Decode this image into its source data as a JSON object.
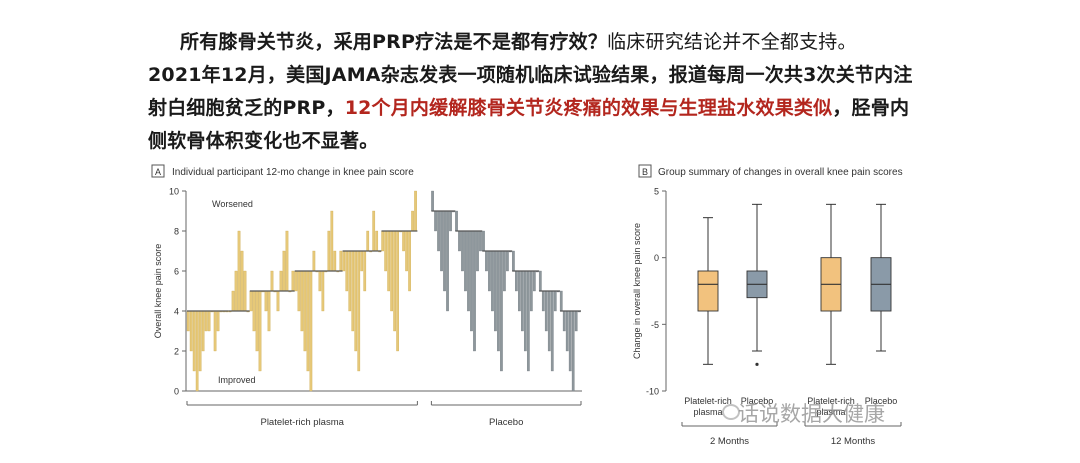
{
  "article": {
    "line1_bold": "所有膝骨关节炎，采用PRP疗法是不是都有疗效？",
    "line1_normal": "临床研究结论并不全都支持。",
    "line2": "2021年12月，美国JAMA杂志发表一项随机临床试验结果，报道每周一次共3次关节内注射白细胞贫乏的PRP，",
    "highlight": "12个月内缓解膝骨关节炎疼痛的效果与生理盐水效果类似",
    "line3": "，胫骨内侧软骨体积变化也不显著。"
  },
  "watermark": "话说数据大健康",
  "colors": {
    "prp": "#e6c878",
    "prp_stroke": "#c9a64a",
    "placebo": "#8e979c",
    "placebo_box": "#8a9aa8",
    "prp_box": "#f2c27e"
  },
  "chart_data": [
    {
      "type": "bar",
      "panel": "A",
      "title": "Individual participant 12-mo change in knee pain score",
      "ylabel": "Overall knee pain score",
      "ylim": [
        0,
        10
      ],
      "yticks": [
        0,
        2,
        4,
        6,
        8,
        10
      ],
      "annotations": [
        "Worsened",
        "Improved"
      ],
      "groups": [
        {
          "name": "Platelet-rich plasma",
          "steps": [
            {
              "base": 4,
              "ends": [
                3,
                2,
                1,
                0,
                1,
                2,
                3,
                3,
                4,
                2,
                3,
                4,
                4,
                4
              ]
            },
            {
              "base": 4,
              "ends": [
                4,
                5,
                6,
                8,
                7,
                6,
                4
              ]
            },
            {
              "base": 5,
              "ends": [
                4,
                3,
                2,
                1,
                5,
                4,
                3,
                6,
                5,
                4,
                6,
                7,
                8,
                5,
                6
              ]
            },
            {
              "base": 6,
              "ends": [
                5,
                4,
                3,
                2,
                1,
                0,
                7,
                6,
                5,
                4,
                6,
                8,
                9,
                7,
                6,
                7
              ]
            },
            {
              "base": 7,
              "ends": [
                6,
                5,
                4,
                3,
                2,
                1,
                6,
                5,
                8,
                7,
                9,
                8,
                7
              ]
            },
            {
              "base": 8,
              "ends": [
                7,
                6,
                5,
                4,
                3,
                2,
                8,
                7,
                6,
                5,
                9,
                10
              ]
            }
          ]
        },
        {
          "name": "Placebo",
          "steps": [
            {
              "base": 9,
              "ends": [
                10,
                8,
                7,
                6,
                5,
                4,
                8,
                9
              ]
            },
            {
              "base": 8,
              "ends": [
                9,
                7,
                6,
                5,
                4,
                3,
                2,
                6,
                7
              ]
            },
            {
              "base": 7,
              "ends": [
                8,
                6,
                5,
                4,
                3,
                2,
                1,
                5,
                6,
                7
              ]
            },
            {
              "base": 6,
              "ends": [
                7,
                5,
                4,
                3,
                2,
                1,
                4,
                5,
                6
              ]
            },
            {
              "base": 5,
              "ends": [
                6,
                4,
                3,
                2,
                1,
                4,
                5
              ]
            },
            {
              "base": 4,
              "ends": [
                5,
                3,
                2,
                1,
                0,
                3,
                4
              ]
            }
          ]
        }
      ]
    },
    {
      "type": "box",
      "panel": "B",
      "title": "Group summary of changes in overall knee pain scores",
      "ylabel": "Change in overall knee pain score",
      "ylim": [
        -10,
        5
      ],
      "yticks": [
        5,
        0,
        -5,
        -10
      ],
      "categories": [
        "Platelet-rich plasma",
        "Placebo",
        "Platelet-rich plasma",
        "Placebo"
      ],
      "timepoints": [
        "2 Months",
        "12 Months"
      ],
      "boxes": [
        {
          "group": "Platelet-rich plasma",
          "time": "2 Months",
          "min": -8,
          "q1": -4,
          "median": -2,
          "q3": -1,
          "max": 3,
          "outliers": []
        },
        {
          "group": "Placebo",
          "time": "2 Months",
          "min": -7,
          "q1": -3,
          "median": -2,
          "q3": -1,
          "max": 4,
          "outliers": [
            -8
          ]
        },
        {
          "group": "Platelet-rich plasma",
          "time": "12 Months",
          "min": -8,
          "q1": -4,
          "median": -2,
          "q3": 0,
          "max": 4,
          "outliers": []
        },
        {
          "group": "Placebo",
          "time": "12 Months",
          "min": -7,
          "q1": -4,
          "median": -2,
          "q3": 0,
          "max": 4,
          "outliers": []
        }
      ]
    }
  ]
}
